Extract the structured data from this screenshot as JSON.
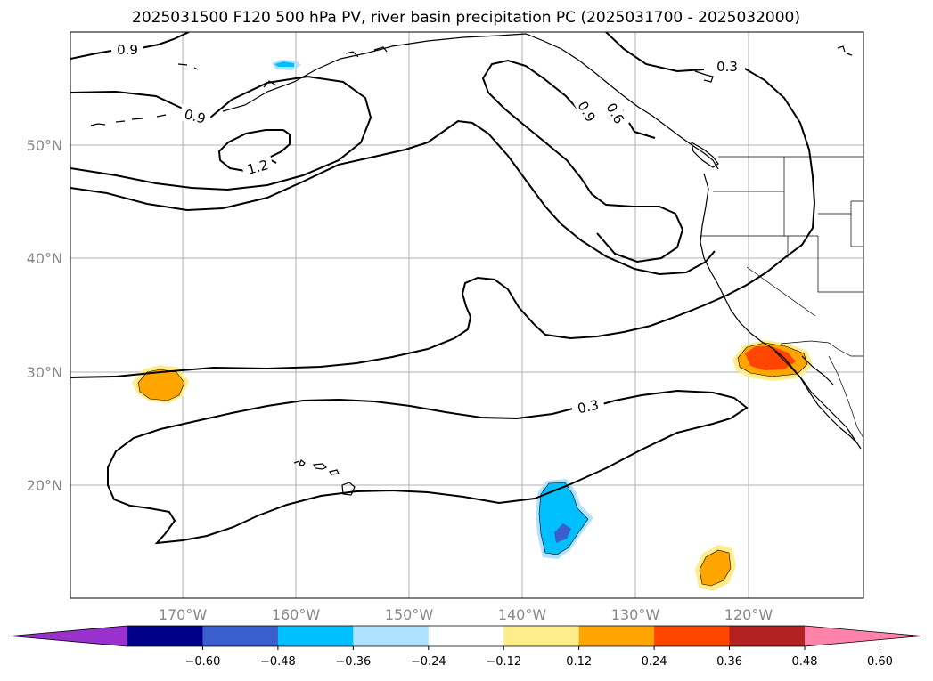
{
  "title": "2025031500 F120 500 hPa PV, river basin precipitation PC (2025031700 - 2025032000)",
  "lat_labels": [
    "50°N",
    "40°N",
    "30°N",
    "20°N"
  ],
  "lon_labels": [
    "170°W",
    "160°W",
    "150°W",
    "140°W",
    "130°W",
    "120°W"
  ],
  "contour_labels": [
    "0.9",
    "0.9",
    "1.2",
    "0.9",
    "0.6",
    "0.3",
    "0.3"
  ],
  "colorbar": {
    "ticks": [
      "−0.60",
      "−0.48",
      "−0.36",
      "−0.24",
      "−0.12",
      "0.12",
      "0.24",
      "0.36",
      "0.48",
      "0.60"
    ],
    "colors": [
      "#9932cc",
      "#00008b",
      "#3a5fcd",
      "#00bfff",
      "#b0e2ff",
      "#ffffff",
      "#ffec8b",
      "#ffa500",
      "#ff4500",
      "#b22222",
      "#ff82ab"
    ]
  },
  "colors": {
    "contour": "#000000",
    "grid": "#b0b0b0",
    "axis_label": "#888888"
  }
}
